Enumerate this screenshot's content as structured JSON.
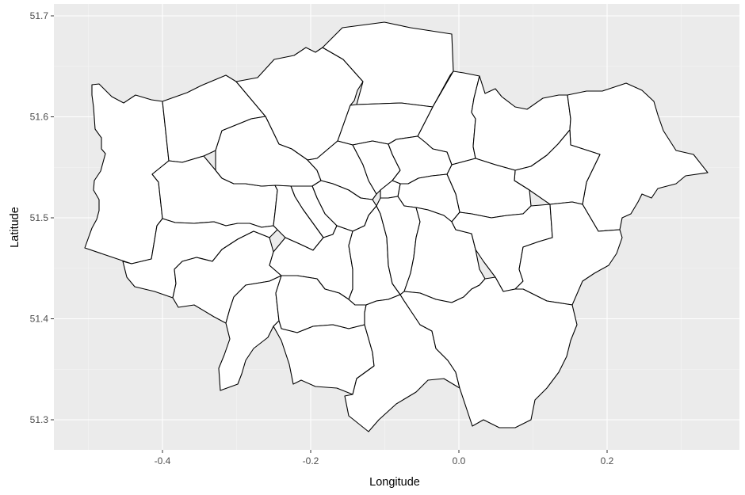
{
  "chart_data": {
    "type": "map",
    "title": "",
    "xlabel": "Longitude",
    "ylabel": "Latitude",
    "xlim": [
      -0.52,
      0.34
    ],
    "ylim": [
      51.27,
      51.71
    ],
    "x_ticks": [
      {
        "value": -0.4,
        "label": "-0.4"
      },
      {
        "value": -0.2,
        "label": "-0.2"
      },
      {
        "value": 0.0,
        "label": "0.0"
      },
      {
        "value": 0.2,
        "label": "0.2"
      }
    ],
    "y_ticks": [
      {
        "value": 51.3,
        "label": "51.3"
      },
      {
        "value": 51.4,
        "label": "51.4"
      },
      {
        "value": 51.5,
        "label": "51.5"
      },
      {
        "value": 51.6,
        "label": "51.6"
      },
      {
        "value": 51.7,
        "label": "51.7"
      }
    ],
    "grid": true,
    "region_count": 33,
    "colors": {
      "panel": "#ebebeb",
      "grid": "#ffffff",
      "region_fill": "#ffffff",
      "region_stroke": "#000000"
    }
  }
}
